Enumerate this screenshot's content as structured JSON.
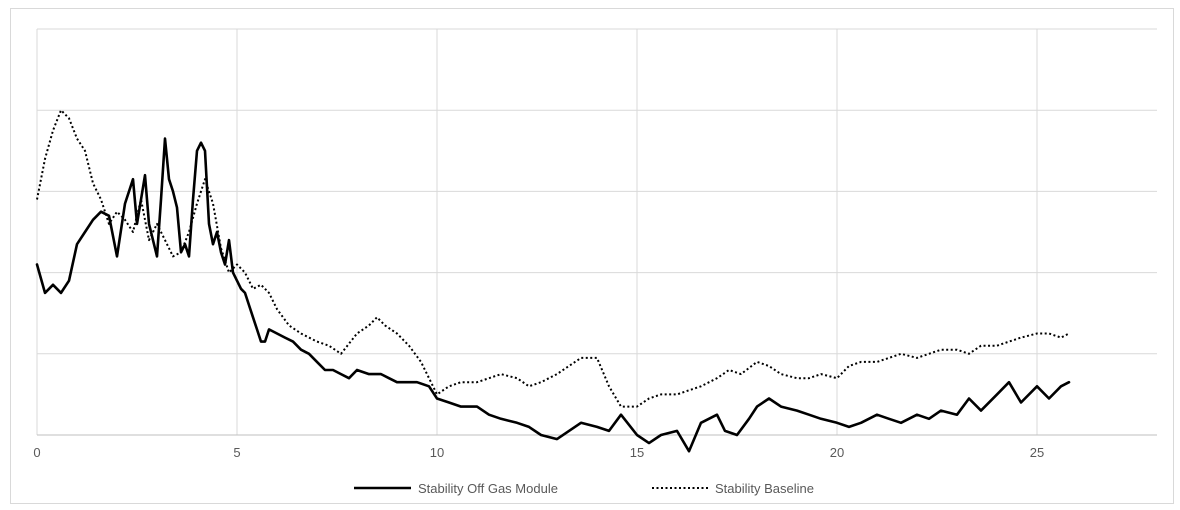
{
  "chart_data": {
    "type": "line",
    "title": "",
    "xlabel": "",
    "ylabel": "",
    "xlim": [
      0,
      28
    ],
    "ylim": [
      0,
      100
    ],
    "x_ticks": [
      0,
      5,
      10,
      15,
      20,
      25
    ],
    "x_tick_labels": [
      "0",
      "5",
      "10",
      "15",
      "20",
      "25"
    ],
    "y_gridlines": [
      0,
      20,
      40,
      60,
      80,
      100
    ],
    "y_tick_labels_visible": false,
    "grid": true,
    "legend_position": "bottom",
    "series": [
      {
        "name": "Stability Off Gas Module",
        "style": "solid",
        "color": "#000000",
        "x": [
          0,
          0.2,
          0.4,
          0.6,
          0.8,
          1.0,
          1.2,
          1.4,
          1.6,
          1.8,
          2.0,
          2.2,
          2.4,
          2.5,
          2.7,
          2.8,
          3.0,
          3.1,
          3.2,
          3.3,
          3.4,
          3.5,
          3.6,
          3.7,
          3.8,
          3.9,
          4.0,
          4.1,
          4.2,
          4.3,
          4.4,
          4.5,
          4.6,
          4.7,
          4.8,
          4.9,
          5.0,
          5.1,
          5.2,
          5.3,
          5.4,
          5.5,
          5.6,
          5.7,
          5.8,
          6.0,
          6.2,
          6.4,
          6.6,
          6.8,
          7.0,
          7.2,
          7.4,
          7.6,
          7.8,
          8.0,
          8.3,
          8.6,
          8.8,
          9.0,
          9.2,
          9.5,
          9.8,
          10.0,
          10.3,
          10.6,
          11.0,
          11.3,
          11.6,
          12.0,
          12.3,
          12.6,
          13.0,
          13.3,
          13.6,
          14.0,
          14.3,
          14.6,
          15.0,
          15.3,
          15.6,
          16.0,
          16.3,
          16.6,
          17.0,
          17.2,
          17.5,
          17.8,
          18.0,
          18.3,
          18.6,
          19.0,
          19.3,
          19.6,
          20.0,
          20.3,
          20.6,
          21.0,
          21.3,
          21.6,
          22.0,
          22.3,
          22.6,
          23.0,
          23.3,
          23.6,
          24.0,
          24.3,
          24.6,
          25.0,
          25.3,
          25.6,
          25.8
        ],
        "y": [
          42,
          35,
          37,
          35,
          38,
          47,
          50,
          53,
          55,
          54,
          44,
          57,
          63,
          52,
          64,
          52,
          44,
          58,
          73,
          63,
          60,
          56,
          45,
          47,
          44,
          58,
          70,
          72,
          70,
          52,
          47,
          50,
          45,
          42,
          48,
          40,
          38,
          36,
          35,
          32,
          29,
          26,
          23,
          23,
          26,
          25,
          24,
          23,
          21,
          20,
          18,
          16,
          16,
          15,
          14,
          16,
          15,
          15,
          14,
          13,
          13,
          13,
          12,
          9,
          8,
          7,
          7,
          5,
          4,
          3,
          2,
          0,
          -1,
          1,
          3,
          2,
          1,
          5,
          0,
          -2,
          0,
          1,
          -4,
          3,
          5,
          1,
          0,
          4,
          7,
          9,
          7,
          6,
          5,
          4,
          3,
          2,
          3,
          5,
          4,
          3,
          5,
          4,
          6,
          5,
          9,
          6,
          10,
          13,
          8,
          12,
          9,
          12,
          13
        ]
      },
      {
        "name": "Stability Baseline",
        "style": "dotted",
        "color": "#000000",
        "x": [
          0,
          0.2,
          0.4,
          0.6,
          0.8,
          1.0,
          1.2,
          1.4,
          1.6,
          1.8,
          2.0,
          2.2,
          2.4,
          2.6,
          2.8,
          3.0,
          3.2,
          3.4,
          3.6,
          3.8,
          4.0,
          4.2,
          4.4,
          4.6,
          4.8,
          5.0,
          5.2,
          5.4,
          5.6,
          5.8,
          6.0,
          6.3,
          6.6,
          7.0,
          7.3,
          7.6,
          8.0,
          8.3,
          8.5,
          8.7,
          9.0,
          9.3,
          9.6,
          10.0,
          10.3,
          10.6,
          11.0,
          11.3,
          11.6,
          12.0,
          12.3,
          12.6,
          13.0,
          13.3,
          13.6,
          14.0,
          14.3,
          14.6,
          15.0,
          15.3,
          15.6,
          16.0,
          16.3,
          16.6,
          17.0,
          17.3,
          17.6,
          18.0,
          18.3,
          18.6,
          19.0,
          19.3,
          19.6,
          20.0,
          20.3,
          20.6,
          21.0,
          21.3,
          21.6,
          22.0,
          22.3,
          22.6,
          23.0,
          23.3,
          23.6,
          24.0,
          24.3,
          24.6,
          25.0,
          25.3,
          25.6,
          25.8
        ],
        "y": [
          58,
          68,
          75,
          80,
          78,
          73,
          70,
          62,
          58,
          52,
          55,
          53,
          50,
          58,
          48,
          52,
          48,
          44,
          45,
          50,
          57,
          63,
          57,
          46,
          40,
          42,
          40,
          36,
          37,
          35,
          31,
          27,
          25,
          23,
          22,
          20,
          25,
          27,
          29,
          27,
          25,
          22,
          18,
          10,
          12,
          13,
          13,
          14,
          15,
          14,
          12,
          13,
          15,
          17,
          19,
          19,
          12,
          7,
          7,
          9,
          10,
          10,
          11,
          12,
          14,
          16,
          15,
          18,
          17,
          15,
          14,
          14,
          15,
          14,
          17,
          18,
          18,
          19,
          20,
          19,
          20,
          21,
          21,
          20,
          22,
          22,
          23,
          24,
          25,
          25,
          24,
          25
        ]
      }
    ]
  }
}
